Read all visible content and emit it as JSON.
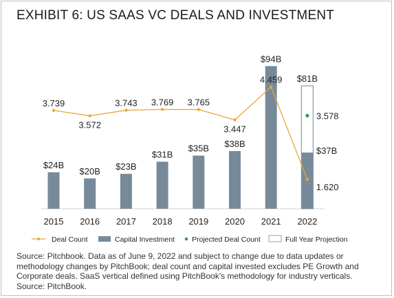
{
  "title": "EXHIBIT 6: US SAAS VC DEALS AND INVESTMENT",
  "colors": {
    "bar": "#778a9a",
    "line": "#e8a83a",
    "projected_point": "#2e9e4f",
    "projection_outline": "#8ca0b3"
  },
  "chart_data": {
    "type": "bar",
    "categories": [
      "2015",
      "2016",
      "2017",
      "2018",
      "2019",
      "2020",
      "2021",
      "2022"
    ],
    "series": [
      {
        "name": "Capital Investment",
        "type": "bar",
        "values": [
          24,
          20,
          23,
          31,
          35,
          38,
          94,
          37
        ],
        "labels": [
          "$24B",
          "$20B",
          "$23B",
          "$31B",
          "$35B",
          "$38B",
          "$94B",
          "$37B"
        ]
      },
      {
        "name": "Full Year Projection",
        "type": "bar-outline",
        "values": [
          null,
          null,
          null,
          null,
          null,
          null,
          null,
          81
        ],
        "labels": [
          "",
          "",
          "",
          "",
          "",
          "",
          "",
          "$81B"
        ]
      },
      {
        "name": "Deal Count",
        "type": "line",
        "values": [
          3.739,
          3.572,
          3.743,
          3.769,
          3.765,
          3.447,
          4.459,
          1.62
        ],
        "labels": [
          "3.739",
          "3.572",
          "3.743",
          "3.769",
          "3.765",
          "3.447",
          "4.459",
          "1.620"
        ]
      },
      {
        "name": "Projected Deal Count",
        "type": "point",
        "values": [
          null,
          null,
          null,
          null,
          null,
          null,
          null,
          3.578
        ],
        "labels": [
          "",
          "",
          "",
          "",
          "",
          "",
          "",
          "3.578"
        ]
      }
    ],
    "legend": {
      "position": "bottom",
      "items": [
        "Deal Count",
        "Capital Investment",
        "Projected Deal Count",
        "Full Year Projection"
      ]
    },
    "grid": false
  },
  "source_lines": [
    "Source: Pitchbook. Data as of June 9, 2022 and subject to change due to data updates or",
    "methodology changes by PitchBook; deal count and capital invested excludes PE Growth and",
    "Corporate deals. SaaS vertical defined using PitchBook's methodology for industry verticals.",
    "Source: PitchBook."
  ]
}
